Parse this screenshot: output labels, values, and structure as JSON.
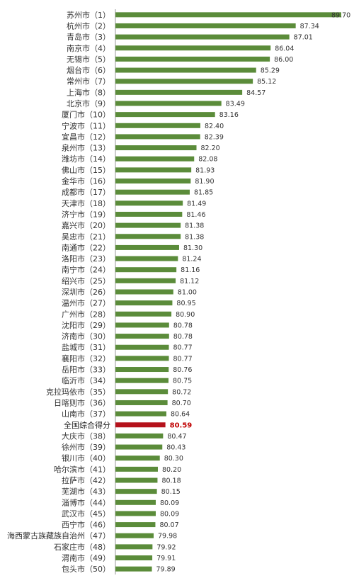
{
  "chart_data": {
    "type": "bar",
    "orientation": "horizontal",
    "title": "",
    "xlabel": "",
    "ylabel": "",
    "xlim": [
      78,
      89.7
    ],
    "grid": false,
    "colors": {
      "bar": "#5b8c3a",
      "highlight": "#b5121b"
    },
    "highlight_category": "全国综合得分",
    "categories": [
      "苏州市（1）",
      "杭州市（2）",
      "青岛市（3）",
      "南京市（4）",
      "无锡市（5）",
      "烟台市（6）",
      "常州市（7）",
      "上海市（8）",
      "北京市（9）",
      "厦门市（10）",
      "宁波市（11）",
      "宜昌市（12）",
      "泉州市（13）",
      "潍坊市（14）",
      "佛山市（15）",
      "金华市（16）",
      "成都市（17）",
      "天津市（18）",
      "济宁市（19）",
      "嘉兴市（20）",
      "吴忠市（21）",
      "南通市（22）",
      "洛阳市（23）",
      "南宁市（24）",
      "绍兴市（25）",
      "深圳市（26）",
      "温州市（27）",
      "广州市（28）",
      "沈阳市（29）",
      "济南市（30）",
      "盐城市（31）",
      "襄阳市（32）",
      "岳阳市（33）",
      "临沂市（34）",
      "克拉玛依市（35）",
      "日喀则市（36）",
      "山南市（37）",
      "全国综合得分",
      "大庆市（38）",
      "徐州市（39）",
      "银川市（40）",
      "哈尔滨市（41）",
      "拉萨市（42）",
      "芜湖市（43）",
      "淄博市（44）",
      "武汉市（45）",
      "西宁市（46）",
      "海西蒙古族藏族自治州（47）",
      "石家庄市（48）",
      "渭南市（49）",
      "包头市（50）"
    ],
    "values": [
      89.7,
      87.34,
      87.01,
      86.04,
      86.0,
      85.29,
      85.12,
      84.57,
      83.49,
      83.16,
      82.4,
      82.39,
      82.2,
      82.08,
      81.93,
      81.9,
      81.85,
      81.49,
      81.46,
      81.38,
      81.38,
      81.3,
      81.24,
      81.16,
      81.12,
      81.0,
      80.95,
      80.9,
      80.78,
      80.78,
      80.77,
      80.77,
      80.76,
      80.75,
      80.72,
      80.7,
      80.64,
      80.59,
      80.47,
      80.43,
      80.3,
      80.2,
      80.18,
      80.15,
      80.09,
      80.09,
      80.07,
      79.98,
      79.92,
      79.91,
      79.89
    ],
    "value_labels": [
      "89.70",
      "87.34",
      "87.01",
      "86.04",
      "86.00",
      "85.29",
      "85.12",
      "84.57",
      "83.49",
      "83.16",
      "82.40",
      "82.39",
      "82.20",
      "82.08",
      "81.93",
      "81.90",
      "81.85",
      "81.49",
      "81.46",
      "81.38",
      "81.38",
      "81.30",
      "81.24",
      "81.16",
      "81.12",
      "81.00",
      "80.95",
      "80.90",
      "80.78",
      "80.78",
      "80.77",
      "80.77",
      "80.76",
      "80.75",
      "80.72",
      "80.70",
      "80.64",
      "80.59",
      "80.47",
      "80.43",
      "80.30",
      "80.20",
      "80.18",
      "80.15",
      "80.09",
      "80.09",
      "80.07",
      "79.98",
      "79.92",
      "79.91",
      "79.89"
    ]
  }
}
